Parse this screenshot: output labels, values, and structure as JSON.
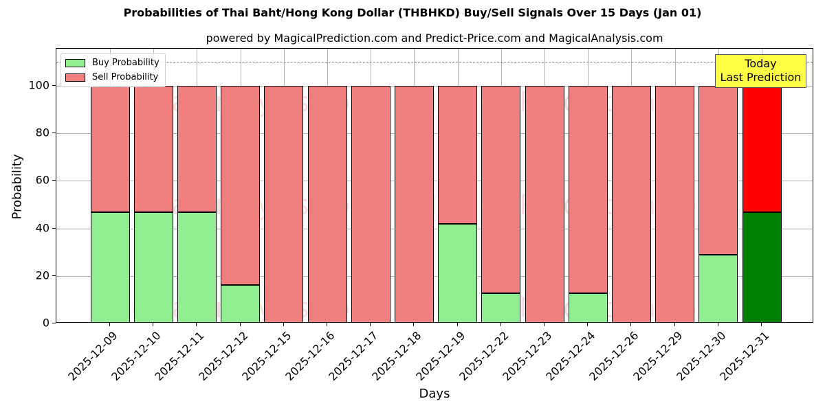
{
  "chart_data": {
    "type": "bar",
    "stacked": true,
    "title": "Probabilities of Thai Baht/Hong Kong Dollar (THBHKD) Buy/Sell Signals Over 15 Days (Jan 01)",
    "subtitle": "powered by MagicalPrediction.com and Predict-Price.com and MagicalAnalysis.com",
    "xlabel": "Days",
    "ylabel": "Probability",
    "ylim": [
      0,
      115.6
    ],
    "yticks": [
      0,
      20,
      40,
      60,
      80,
      100
    ],
    "grid": true,
    "legend_position": "upper left",
    "categories": [
      "2025-12-09",
      "2025-12-10",
      "2025-12-11",
      "2025-12-12",
      "2025-12-15",
      "2025-12-16",
      "2025-12-17",
      "2025-12-18",
      "2025-12-19",
      "2025-12-22",
      "2025-12-23",
      "2025-12-24",
      "2025-12-26",
      "2025-12-29",
      "2025-12-30",
      "2025-12-31"
    ],
    "series": [
      {
        "name": "Buy Probability",
        "color": "#90ee90",
        "values": [
          46.8,
          46.8,
          46.8,
          16.2,
          0,
          0,
          0,
          0,
          41.9,
          12.7,
          0,
          12.7,
          0,
          0,
          28.9,
          46.8
        ]
      },
      {
        "name": "Sell Probability",
        "color": "#f08080",
        "values": [
          53.2,
          53.2,
          53.2,
          83.8,
          100,
          100,
          100,
          100,
          58.1,
          87.3,
          100,
          87.3,
          100,
          100,
          71.1,
          53.2
        ]
      }
    ],
    "highlight": {
      "index": 15,
      "buy_color": "#008000",
      "sell_color": "#ff0000"
    },
    "reference_line": {
      "y": 110,
      "style": "dashed",
      "color": "#808080"
    },
    "annotation": {
      "line1": "Today",
      "line2": "Last Prediction",
      "background": "#ffff44"
    },
    "watermarks": [
      "MagicalAnalysis.com",
      "MagicalPrediction.com"
    ]
  }
}
